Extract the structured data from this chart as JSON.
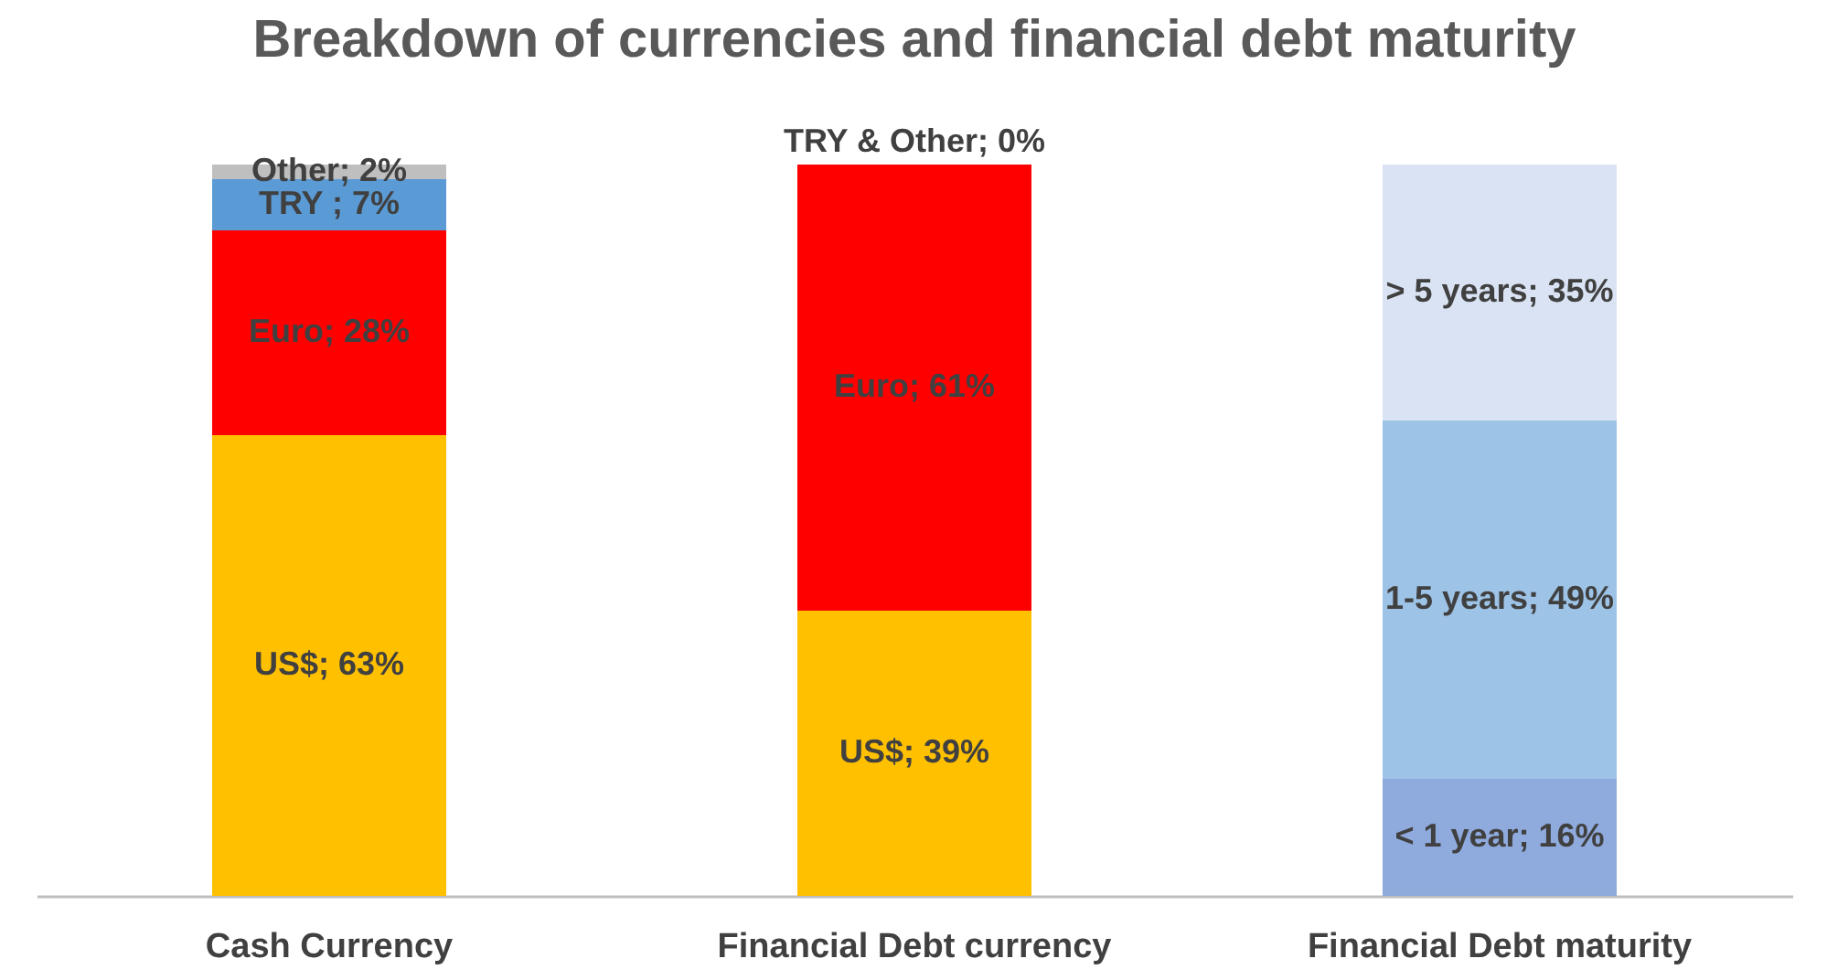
{
  "chart_data": {
    "type": "bar",
    "title": "Breakdown of currencies and financial debt maturity",
    "categories": [
      "Cash Currency",
      "Financial Debt currency",
      "Financial Debt maturity"
    ],
    "stacked": true,
    "ylim": [
      0,
      100
    ],
    "tick_labels": "x",
    "legend": false,
    "series": [
      {
        "color": "#ffc000",
        "values": [
          63,
          39,
          null
        ],
        "value_labels": [
          "US$; 63%",
          "US$; 39%",
          null
        ]
      },
      {
        "color": "#ff0000",
        "values": [
          28,
          61,
          null
        ],
        "value_labels": [
          "Euro; 28%",
          "Euro; 61%",
          null
        ]
      },
      {
        "color": "#5b9bd5",
        "values": [
          7,
          null,
          null
        ],
        "value_labels": [
          "TRY ; 7%",
          null,
          null
        ]
      },
      {
        "color": "#bfbfbf",
        "values": [
          2,
          null,
          null
        ],
        "value_labels": [
          "Other; 2%",
          null,
          null
        ]
      },
      {
        "color": "#a5a5a5",
        "values": [
          null,
          0,
          null
        ],
        "value_labels": [
          null,
          "TRY & Other; 0%",
          null
        ]
      },
      {
        "color": "#8faadc",
        "values": [
          null,
          null,
          16
        ],
        "value_labels": [
          null,
          null,
          "< 1 year; 16%"
        ]
      },
      {
        "color": "#9dc3e6",
        "values": [
          null,
          null,
          49
        ],
        "value_labels": [
          null,
          null,
          "1-5 years; 49%"
        ]
      },
      {
        "color": "#dae3f3",
        "values": [
          null,
          null,
          35
        ],
        "value_labels": [
          null,
          null,
          "> 5 years; 35%"
        ]
      }
    ]
  }
}
